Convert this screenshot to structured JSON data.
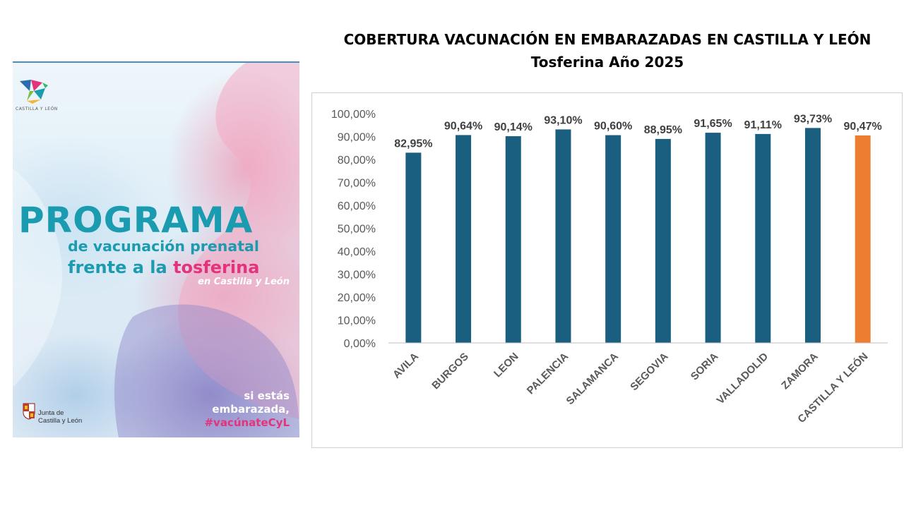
{
  "slide": {
    "title_line1": "COBERTURA VACUNACIÓN EN EMBARAZADAS EN CASTILLA Y LEÓN",
    "title_line2": "Tosferina Año 2025"
  },
  "poster": {
    "logo_label": "CASTILLA Y LEÓN",
    "headline": "PROGRAMA",
    "line2": "de vacunación prenatal",
    "line3_prefix": "frente a la ",
    "line3_highlight": "tosferina",
    "line4": "en Castilla y León",
    "footer_line1": "si estás",
    "footer_line2": "embarazada,",
    "footer_hashtag": "#vacúnateCyL",
    "junta_line1": "Junta de",
    "junta_line2": "Castilla y León",
    "colors": {
      "teal": "#1b9bb0",
      "pink": "#e3337c"
    }
  },
  "chart_data": {
    "type": "bar",
    "categories": [
      "AVILA",
      "BURGOS",
      "LEON",
      "PALENCIA",
      "SALAMANCA",
      "SEGOVIA",
      "SORIA",
      "VALLADOLID",
      "ZAMORA",
      "CASTILLA Y LEÓN"
    ],
    "values": [
      82.95,
      90.64,
      90.14,
      93.1,
      90.6,
      88.95,
      91.65,
      91.11,
      93.73,
      90.47
    ],
    "data_labels": [
      "82,95%",
      "90,64%",
      "90,14%",
      "93,10%",
      "90,60%",
      "88,95%",
      "91,65%",
      "91,11%",
      "93,73%",
      "90,47%"
    ],
    "yticks": [
      "0,00%",
      "10,00%",
      "20,00%",
      "30,00%",
      "40,00%",
      "50,00%",
      "60,00%",
      "70,00%",
      "80,00%",
      "90,00%",
      "100,00%"
    ],
    "ylim": [
      0,
      100
    ],
    "grid": false,
    "colors": {
      "bar": "#1a5e80",
      "highlight": "#ed7d31",
      "highlight_category": "CASTILLA Y LEÓN"
    }
  }
}
